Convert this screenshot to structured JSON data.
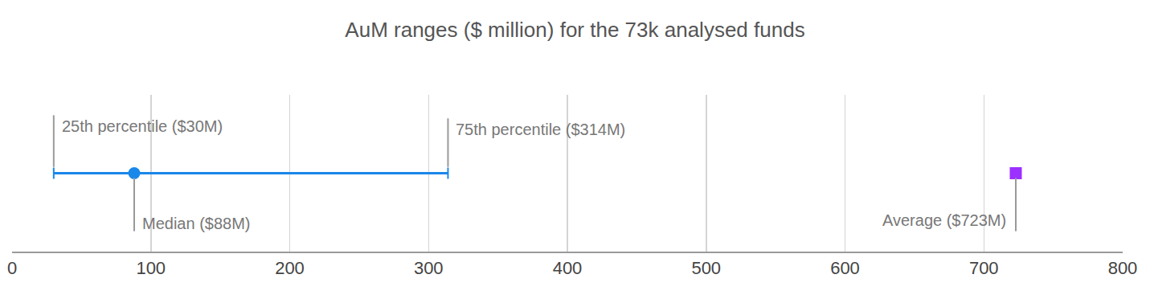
{
  "chart_data": {
    "type": "range",
    "title": "AuM ranges ($ million) for the 73k analysed funds",
    "range": {
      "from": 30,
      "to": 314,
      "color": "#1a87ea",
      "from_label": "25th percentile ($30M)",
      "to_label": "75th percentile ($314M)"
    },
    "median": {
      "value": 88,
      "label": "Median ($88M)",
      "color": "#1a87ea",
      "marker": "circle"
    },
    "average": {
      "value": 723,
      "label": "Average ($723M)",
      "color": "#9b30ff",
      "marker": "square"
    },
    "xlim": [
      0,
      800
    ],
    "xticks": [
      0,
      100,
      200,
      300,
      400,
      500,
      600,
      700,
      800
    ],
    "grid": true,
    "tick_labels": "x"
  }
}
